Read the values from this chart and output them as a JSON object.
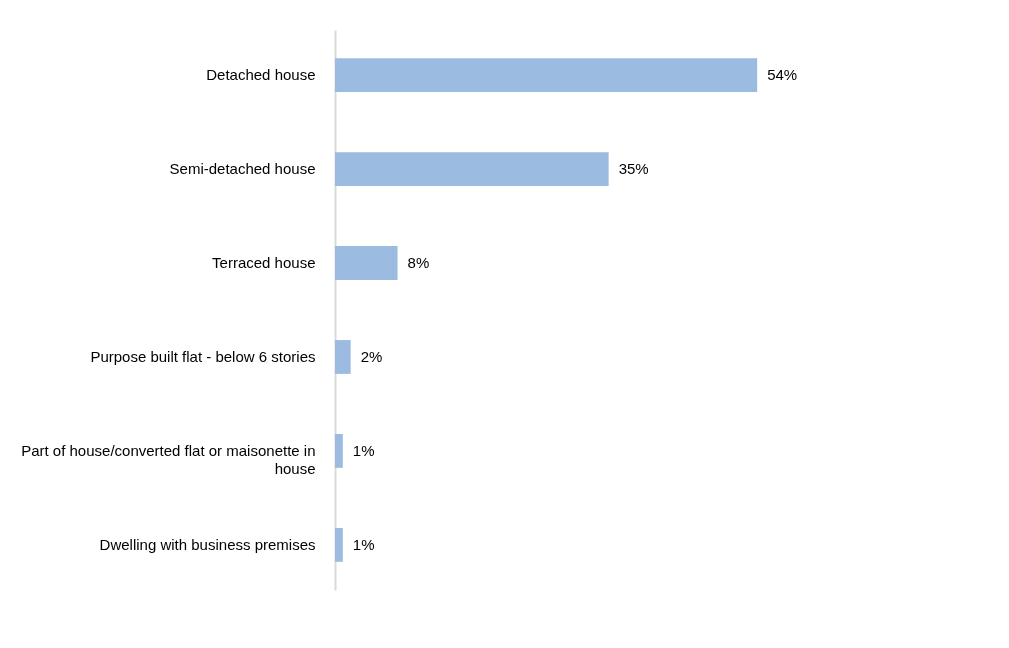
{
  "chart_data": {
    "type": "bar",
    "orientation": "horizontal",
    "categories": [
      "Detached house",
      "Semi-detached house",
      "Terraced house",
      "Purpose built flat - below 6 stories",
      "Part of house/converted flat or maisonette in house",
      "Dwelling with business premises"
    ],
    "values": [
      54,
      35,
      8,
      2,
      1,
      1
    ],
    "value_labels": [
      "54%",
      "35%",
      "8%",
      "2%",
      "1%",
      "1%"
    ],
    "color": "#9bbbe1",
    "tick_labels": "y"
  }
}
